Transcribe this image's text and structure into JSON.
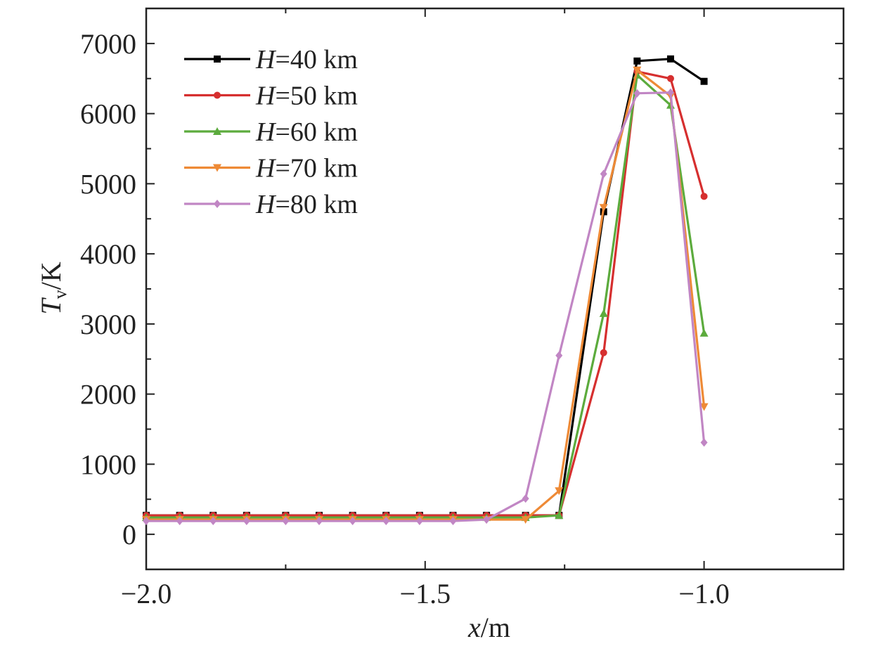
{
  "chart_data": {
    "type": "line",
    "x_axis": {
      "var": "x",
      "unit": "/m",
      "range": [
        -2.0,
        -0.75
      ],
      "major_ticks": [
        -2.0,
        -1.5,
        -1.0
      ],
      "tick_labels": [
        "−2.0",
        "−1.5",
        "−1.0"
      ],
      "minor_step": 0.25
    },
    "y_axis": {
      "var": "T",
      "sub": "v",
      "unit": "/K",
      "range": [
        -500,
        7500
      ],
      "major_ticks": [
        0,
        1000,
        2000,
        3000,
        4000,
        5000,
        6000,
        7000
      ],
      "tick_labels": [
        "0",
        "1000",
        "2000",
        "3000",
        "4000",
        "5000",
        "6000",
        "7000"
      ],
      "minor_step": 500
    },
    "legend_position": "top-left",
    "grid": false,
    "series": [
      {
        "var": "H",
        "eq": "=40 km",
        "color": "#000000",
        "marker": "square",
        "points": [
          [
            -2.0,
            270
          ],
          [
            -1.94,
            270
          ],
          [
            -1.88,
            270
          ],
          [
            -1.82,
            270
          ],
          [
            -1.75,
            270
          ],
          [
            -1.69,
            270
          ],
          [
            -1.63,
            270
          ],
          [
            -1.57,
            270
          ],
          [
            -1.51,
            270
          ],
          [
            -1.45,
            270
          ],
          [
            -1.39,
            270
          ],
          [
            -1.32,
            270
          ],
          [
            -1.26,
            270
          ],
          [
            -1.18,
            4600
          ],
          [
            -1.12,
            6750
          ],
          [
            -1.06,
            6780
          ],
          [
            -1.0,
            6460
          ]
        ]
      },
      {
        "var": "H",
        "eq": "=50 km",
        "color": "#d62f2f",
        "marker": "circle",
        "points": [
          [
            -2.0,
            270
          ],
          [
            -1.94,
            270
          ],
          [
            -1.88,
            270
          ],
          [
            -1.82,
            270
          ],
          [
            -1.75,
            270
          ],
          [
            -1.69,
            270
          ],
          [
            -1.63,
            270
          ],
          [
            -1.57,
            270
          ],
          [
            -1.51,
            270
          ],
          [
            -1.45,
            270
          ],
          [
            -1.39,
            270
          ],
          [
            -1.32,
            270
          ],
          [
            -1.26,
            270
          ],
          [
            -1.18,
            2590
          ],
          [
            -1.12,
            6600
          ],
          [
            -1.06,
            6500
          ],
          [
            -1.0,
            4820
          ]
        ]
      },
      {
        "var": "H",
        "eq": "=60 km",
        "color": "#5cab3d",
        "marker": "triangle-up",
        "points": [
          [
            -2.0,
            240
          ],
          [
            -1.94,
            240
          ],
          [
            -1.88,
            240
          ],
          [
            -1.82,
            240
          ],
          [
            -1.75,
            240
          ],
          [
            -1.69,
            240
          ],
          [
            -1.63,
            240
          ],
          [
            -1.57,
            240
          ],
          [
            -1.51,
            240
          ],
          [
            -1.45,
            240
          ],
          [
            -1.39,
            240
          ],
          [
            -1.32,
            240
          ],
          [
            -1.26,
            270
          ],
          [
            -1.18,
            3150
          ],
          [
            -1.12,
            6550
          ],
          [
            -1.06,
            6120
          ],
          [
            -1.0,
            2870
          ]
        ]
      },
      {
        "var": "H",
        "eq": "=70 km",
        "color": "#ee8a36",
        "marker": "triangle-down",
        "points": [
          [
            -2.0,
            210
          ],
          [
            -1.94,
            210
          ],
          [
            -1.88,
            210
          ],
          [
            -1.82,
            210
          ],
          [
            -1.75,
            210
          ],
          [
            -1.69,
            210
          ],
          [
            -1.63,
            210
          ],
          [
            -1.57,
            210
          ],
          [
            -1.51,
            210
          ],
          [
            -1.45,
            210
          ],
          [
            -1.39,
            210
          ],
          [
            -1.32,
            210
          ],
          [
            -1.26,
            620
          ],
          [
            -1.18,
            4660
          ],
          [
            -1.12,
            6620
          ],
          [
            -1.06,
            6250
          ],
          [
            -1.0,
            1820
          ]
        ]
      },
      {
        "var": "H",
        "eq": "=80 km",
        "color": "#c186c4",
        "marker": "diamond",
        "points": [
          [
            -2.0,
            190
          ],
          [
            -1.94,
            190
          ],
          [
            -1.88,
            190
          ],
          [
            -1.82,
            190
          ],
          [
            -1.75,
            190
          ],
          [
            -1.69,
            190
          ],
          [
            -1.63,
            190
          ],
          [
            -1.57,
            190
          ],
          [
            -1.51,
            190
          ],
          [
            -1.45,
            190
          ],
          [
            -1.39,
            210
          ],
          [
            -1.32,
            510
          ],
          [
            -1.26,
            2550
          ],
          [
            -1.18,
            5140
          ],
          [
            -1.12,
            6290
          ],
          [
            -1.06,
            6300
          ],
          [
            -1.0,
            1310
          ]
        ]
      }
    ]
  }
}
